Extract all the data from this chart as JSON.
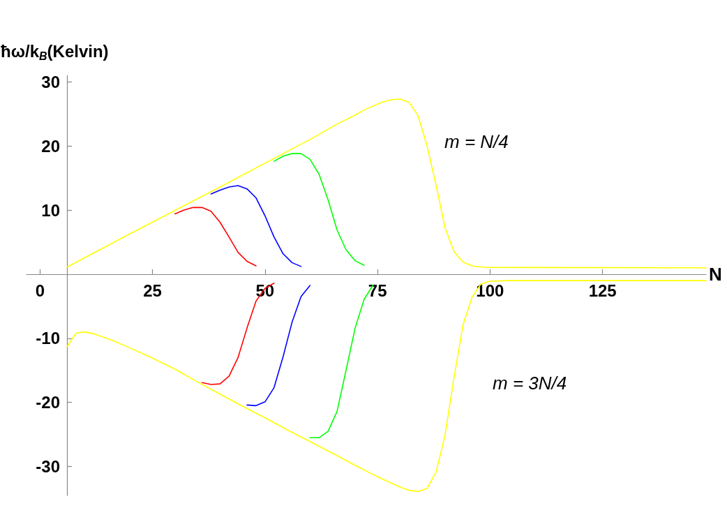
{
  "chart_data": {
    "type": "line",
    "xlabel": "N",
    "ylabel": "ħω/k$_{B}$(Kelvin)",
    "xlim": [
      -3,
      148
    ],
    "ylim": [
      -34.5,
      31
    ],
    "xticks": [
      0,
      25,
      50,
      75,
      100,
      125
    ],
    "yticks": [
      -30,
      -20,
      -10,
      10,
      20,
      30
    ],
    "grid": false,
    "marker": "none",
    "line_style": "solid",
    "annotations": [
      "m = N/4",
      "m = 3N/4"
    ],
    "series": [
      {
        "color": "#ff0000",
        "x": [
          30,
          32,
          34,
          36,
          38,
          40,
          42,
          44,
          46,
          48
        ],
        "values": [
          9.4,
          10.0,
          10.4,
          10.4,
          9.8,
          8.1,
          5.8,
          3.4,
          2.0,
          1.3
        ]
      },
      {
        "color": "#0000ff",
        "x": [
          38,
          40,
          42,
          44,
          46,
          48,
          50,
          52,
          54,
          56,
          58
        ],
        "values": [
          12.5,
          13.1,
          13.6,
          13.8,
          13.3,
          11.9,
          9.1,
          5.8,
          3.2,
          1.8,
          1.2
        ]
      },
      {
        "color": "#00ff00",
        "x": [
          52,
          54,
          56,
          58,
          60,
          62,
          64,
          66,
          68,
          70,
          72
        ],
        "values": [
          17.6,
          18.4,
          18.8,
          18.8,
          17.9,
          15.6,
          11.6,
          6.9,
          3.8,
          2.1,
          1.4
        ]
      },
      {
        "color": "#ffff00",
        "x": [
          6,
          20,
          40,
          60,
          66,
          70,
          72,
          76,
          78,
          80,
          82,
          84,
          86,
          88,
          90,
          92,
          94,
          96,
          99,
          148
        ],
        "values": [
          1.1,
          6.3,
          13.6,
          21.0,
          23.4,
          24.8,
          25.6,
          26.8,
          27.2,
          27.3,
          26.8,
          24.7,
          20.0,
          13.9,
          7.2,
          3.5,
          1.9,
          1.3,
          1.05,
          1
        ]
      },
      {
        "color": "#ff0000",
        "x": [
          36,
          38,
          40,
          42,
          44,
          46,
          48,
          50,
          52
        ],
        "values": [
          -16.9,
          -17.2,
          -17.1,
          -15.9,
          -13.0,
          -8.4,
          -4.2,
          -2.2,
          -1.4
        ]
      },
      {
        "color": "#0000ff",
        "x": [
          46,
          48,
          50,
          52,
          54,
          56,
          58,
          60
        ],
        "values": [
          -20.4,
          -20.5,
          -19.9,
          -17.7,
          -12.9,
          -7.5,
          -3.5,
          -1.75
        ]
      },
      {
        "color": "#00ff00",
        "x": [
          60,
          62,
          64,
          66,
          68,
          70,
          72,
          74
        ],
        "values": [
          -25.5,
          -25.5,
          -24.5,
          -21.4,
          -15.0,
          -8.45,
          -3.95,
          -1.7
        ]
      },
      {
        "color": "#ffff00",
        "x": [
          6,
          8,
          10,
          12,
          16,
          20,
          25,
          30,
          35,
          40,
          45,
          50,
          55,
          60,
          66,
          70,
          75,
          80,
          82,
          84,
          86,
          88,
          90,
          92,
          94,
          96,
          98,
          100,
          104,
          148
        ],
        "values": [
          -11.3,
          -9.2,
          -9.0,
          -9.3,
          -10.3,
          -11.5,
          -13.1,
          -14.8,
          -16.8,
          -18.7,
          -20.6,
          -22.4,
          -24.3,
          -26.1,
          -28.3,
          -29.8,
          -31.6,
          -33.2,
          -33.7,
          -33.9,
          -33.4,
          -30.9,
          -25.1,
          -16.1,
          -7.9,
          -3.6,
          -1.5,
          -1.1,
          -1,
          -1
        ]
      }
    ]
  }
}
